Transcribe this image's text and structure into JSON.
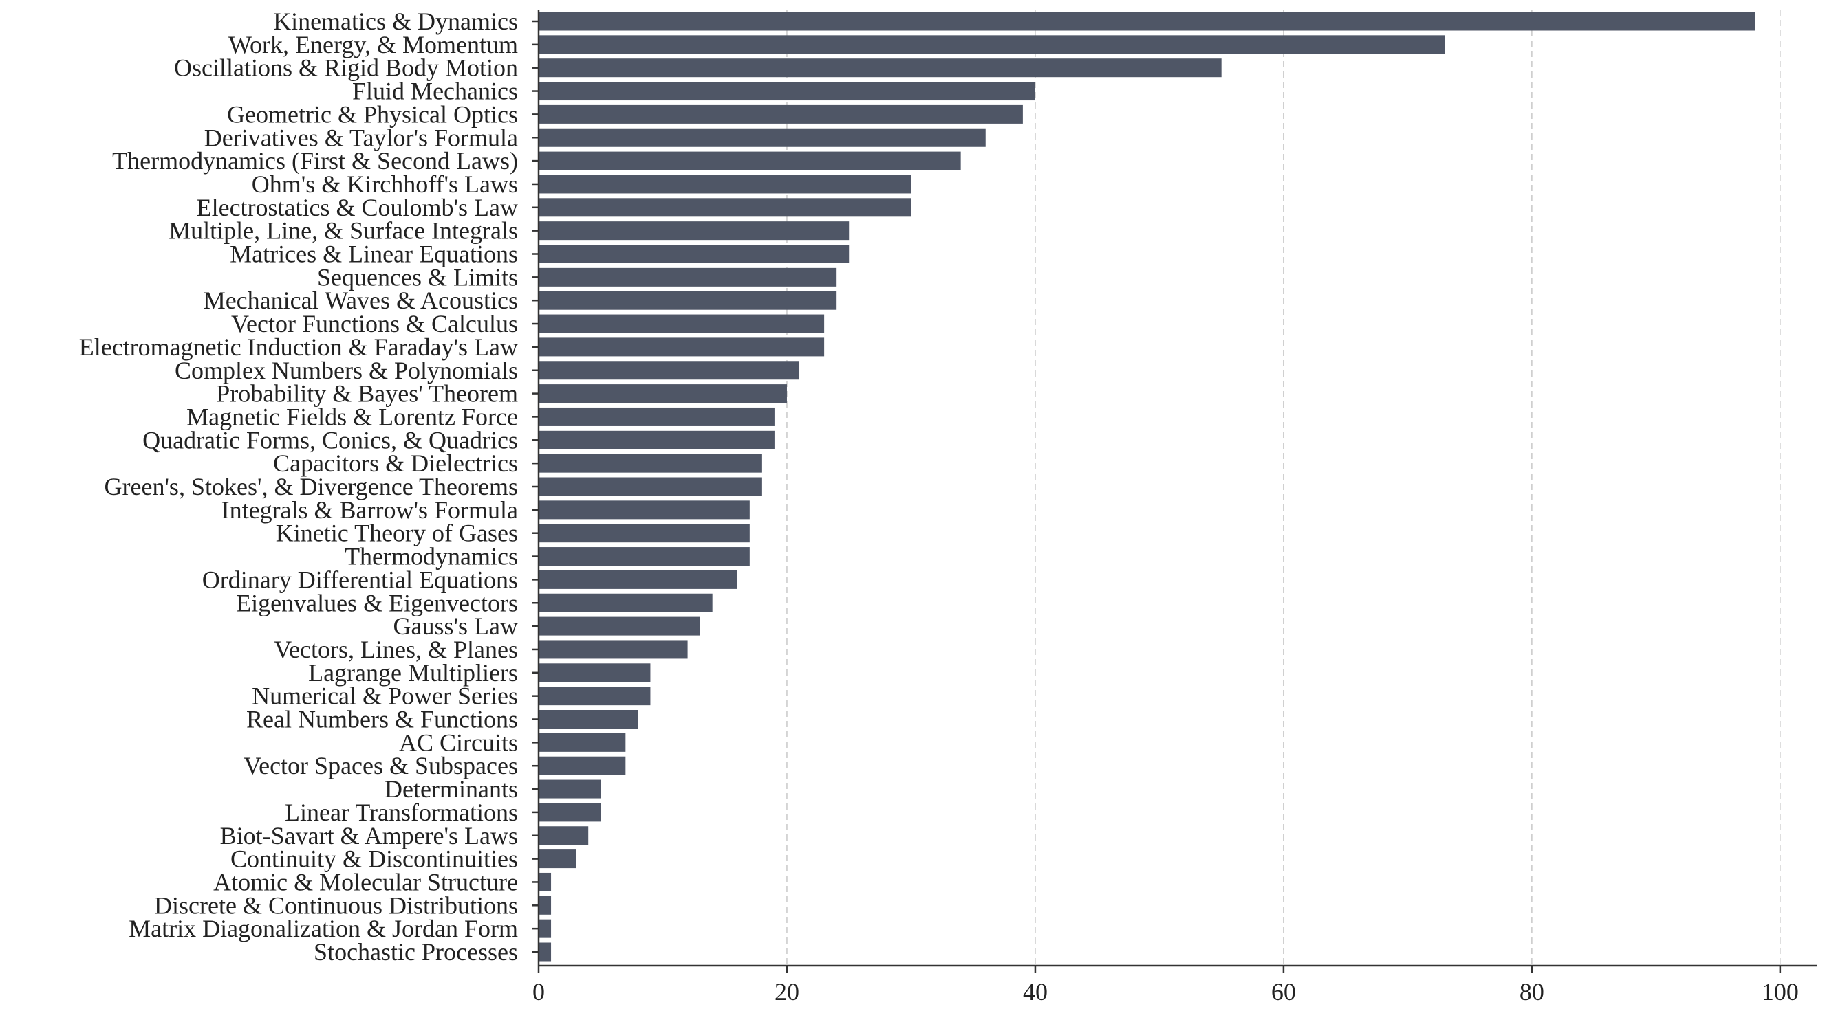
{
  "chart_data": {
    "type": "bar",
    "orientation": "horizontal",
    "title": "",
    "xlabel": "",
    "ylabel": "",
    "xlim": [
      0,
      103
    ],
    "xticks": [
      0,
      20,
      40,
      60,
      80,
      100
    ],
    "grid": "vertical dashed",
    "bar_color": "#4f5666",
    "categories": [
      "Kinematics & Dynamics",
      "Work, Energy, & Momentum",
      "Oscillations & Rigid Body Motion",
      "Fluid Mechanics",
      "Geometric & Physical Optics",
      "Derivatives & Taylor's Formula",
      "Thermodynamics (First & Second Laws)",
      "Ohm's & Kirchhoff's Laws",
      "Electrostatics & Coulomb's Law",
      "Multiple, Line, & Surface Integrals",
      "Matrices & Linear Equations",
      "Sequences & Limits",
      "Mechanical Waves & Acoustics",
      "Vector Functions & Calculus",
      "Electromagnetic Induction & Faraday's Law",
      "Complex Numbers & Polynomials",
      "Probability & Bayes' Theorem",
      "Magnetic Fields & Lorentz Force",
      "Quadratic Forms, Conics, & Quadrics",
      "Capacitors & Dielectrics",
      "Green's, Stokes', & Divergence Theorems",
      "Integrals & Barrow's Formula",
      "Kinetic Theory of Gases",
      "Thermodynamics",
      "Ordinary Differential Equations",
      "Eigenvalues & Eigenvectors",
      "Gauss's Law",
      "Vectors, Lines, & Planes",
      "Lagrange Multipliers",
      "Numerical & Power Series",
      "Real Numbers & Functions",
      "AC Circuits",
      "Vector Spaces & Subspaces",
      "Determinants",
      "Linear Transformations",
      "Biot-Savart & Ampere's Laws",
      "Continuity & Discontinuities",
      "Atomic & Molecular Structure",
      "Discrete & Continuous Distributions",
      "Matrix Diagonalization & Jordan Form",
      "Stochastic Processes"
    ],
    "values": [
      98,
      73,
      55,
      40,
      39,
      36,
      34,
      30,
      30,
      25,
      25,
      24,
      24,
      23,
      23,
      21,
      20,
      19,
      19,
      18,
      18,
      17,
      17,
      17,
      16,
      14,
      13,
      12,
      9,
      9,
      8,
      7,
      7,
      5,
      5,
      4,
      3,
      1,
      1,
      1,
      1
    ]
  }
}
